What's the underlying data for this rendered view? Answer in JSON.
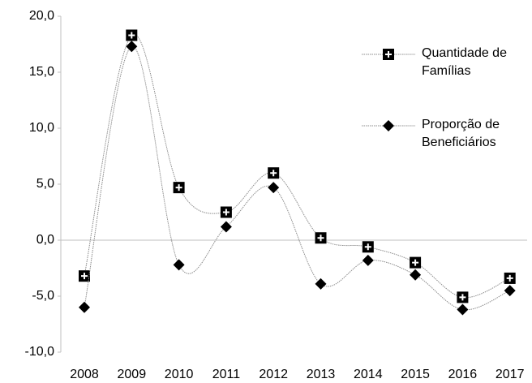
{
  "chart_data": {
    "type": "line",
    "categories": [
      "2008",
      "2009",
      "2010",
      "2011",
      "2012",
      "2013",
      "2014",
      "2015",
      "2016",
      "2017"
    ],
    "series": [
      {
        "name": "Quantidade de Famílias",
        "color": "#000000",
        "marker": "square-plus",
        "values": [
          -3.2,
          18.3,
          4.7,
          2.5,
          6.0,
          0.2,
          -0.6,
          -2.0,
          -5.1,
          -3.4
        ]
      },
      {
        "name": "Proporção de Beneficiários",
        "color": "#000000",
        "marker": "diamond",
        "values": [
          -6.0,
          17.3,
          -2.2,
          1.2,
          4.7,
          -3.9,
          -1.8,
          -3.1,
          -6.2,
          -4.5
        ]
      }
    ],
    "ylim": [
      -10,
      20
    ],
    "yticks": [
      {
        "value": -10,
        "label": "-10,0"
      },
      {
        "value": -5,
        "label": "-5,0"
      },
      {
        "value": 0,
        "label": "0,0"
      },
      {
        "value": 5,
        "label": "5,0"
      },
      {
        "value": 10,
        "label": "10,0"
      },
      {
        "value": 15,
        "label": "15,0"
      },
      {
        "value": 20,
        "label": "20,0"
      }
    ],
    "smooth": true,
    "legend": "upper right"
  }
}
